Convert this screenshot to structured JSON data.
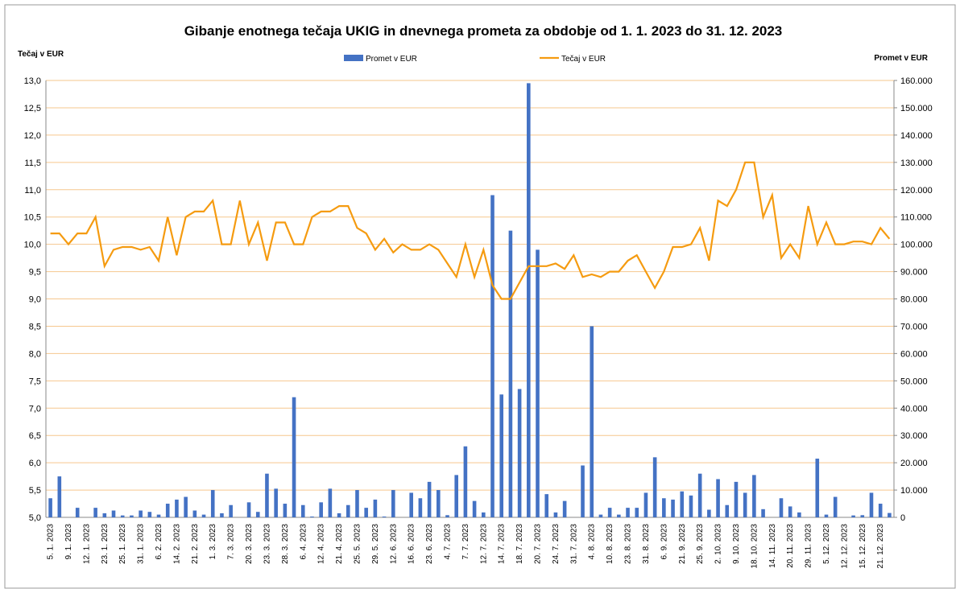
{
  "chart_data": {
    "type": "bar_line",
    "title": "Gibanje enotnega tečaja UKIG in dnevnega prometa za obdobje od 1. 1. 2023 do 31. 12. 2023",
    "y_label": "Tečaj v EUR",
    "y2_label": "Promet v EUR",
    "categories": [
      "5. 1. 2023",
      null,
      "9. 1. 2023",
      null,
      "12. 1. 2023",
      null,
      "23. 1. 2023",
      null,
      "25. 1. 2023",
      null,
      "31. 1. 2023",
      null,
      "6. 2. 2023",
      null,
      "14. 2. 2023",
      null,
      "21. 2. 2023",
      null,
      "1. 3. 2023",
      null,
      "7. 3. 2023",
      null,
      "20. 3. 2023",
      null,
      "23. 3. 2023",
      null,
      "28. 3. 2023",
      null,
      "6. 4. 2023",
      null,
      "12. 4. 2023",
      null,
      "21. 4. 2023",
      null,
      "25. 5. 2023",
      null,
      "29. 5. 2023",
      null,
      "12. 6. 2023",
      null,
      "16. 6. 2023",
      null,
      "23. 6. 2023",
      null,
      "4. 7. 2023",
      null,
      "7. 7. 2023",
      null,
      "12. 7. 2023",
      null,
      "14. 7. 2023",
      null,
      "18. 7. 2023",
      null,
      "20. 7. 2023",
      null,
      "24. 7. 2023",
      null,
      "31. 7. 2023",
      null,
      "4. 8. 2023",
      null,
      "10. 8. 2023",
      null,
      "23. 8. 2023",
      null,
      "31. 8. 2023",
      null,
      "6. 9. 2023",
      null,
      "21. 9. 2023",
      null,
      "25. 9. 2023",
      null,
      "2. 10. 2023",
      null,
      "9. 10. 2023",
      null,
      "18. 10. 2023",
      null,
      "14. 11. 2023",
      null,
      "20. 11. 2023",
      null,
      "29. 11. 2023",
      null,
      "5. 12. 2023",
      null,
      "12. 12. 2023",
      null,
      "15. 12. 2023",
      null,
      "21. 12. 2023",
      null
    ],
    "series": [
      {
        "name": "Promet v EUR",
        "type": "bar",
        "axis": "y2",
        "color": "#4472c4",
        "values": [
          7000,
          15000,
          0,
          3500,
          0,
          3500,
          1500,
          2500,
          700,
          700,
          2500,
          2000,
          1000,
          5000,
          6500,
          7500,
          2500,
          1000,
          10000,
          1500,
          4500,
          0,
          5500,
          2000,
          16000,
          10500,
          5000,
          44000,
          4500,
          300,
          5500,
          10500,
          1500,
          4500,
          10000,
          3500,
          6500,
          300,
          10000,
          0,
          9000,
          7000,
          13000,
          10000,
          800,
          15500,
          26000,
          6000,
          1800,
          118000,
          45000,
          105000,
          47000,
          159000,
          98000,
          8500,
          1800,
          6000,
          0,
          19000,
          70000,
          1000,
          3500,
          1000,
          3500,
          3500,
          9000,
          22000,
          7000,
          6500,
          9500,
          8000,
          16000,
          2800,
          14000,
          4500,
          13000,
          9000,
          15500,
          3000,
          0,
          7000,
          4000,
          1800,
          0,
          21500,
          1000,
          7500,
          0,
          700,
          800,
          9000,
          5000,
          1600
        ]
      },
      {
        "name": "Tečaj v EUR",
        "type": "line",
        "axis": "y",
        "color": "#f59b10",
        "values": [
          10.2,
          10.2,
          10.0,
          10.2,
          10.2,
          10.5,
          9.6,
          9.9,
          9.95,
          9.95,
          9.9,
          9.95,
          9.7,
          10.5,
          9.8,
          10.5,
          10.6,
          10.6,
          10.8,
          10.0,
          10.0,
          10.8,
          10.0,
          10.4,
          9.7,
          10.4,
          10.4,
          10.0,
          10.0,
          10.5,
          10.6,
          10.6,
          10.7,
          10.7,
          10.3,
          10.2,
          9.9,
          10.1,
          9.85,
          10.0,
          9.9,
          9.9,
          10.0,
          9.9,
          9.65,
          9.4,
          10.0,
          9.4,
          9.9,
          9.25,
          9.0,
          9.0,
          9.3,
          9.6,
          9.6,
          9.6,
          9.65,
          9.55,
          9.8,
          9.4,
          9.45,
          9.4,
          9.5,
          9.5,
          9.7,
          9.8,
          9.5,
          9.2,
          9.5,
          9.95,
          9.95,
          10.0,
          10.3,
          9.7,
          10.8,
          10.7,
          11.0,
          11.5,
          11.5,
          10.5,
          10.9,
          9.75,
          10.0,
          9.75,
          10.7,
          10.0,
          10.4,
          10.0,
          10.0,
          10.05,
          10.05,
          10.0,
          10.3,
          10.1
        ]
      }
    ],
    "ylim": [
      5,
      13
    ],
    "yticks": [
      {
        "value": 5,
        "label": "5,0"
      },
      {
        "value": 5.5,
        "label": "5,5"
      },
      {
        "value": 6,
        "label": "6,0"
      },
      {
        "value": 6.5,
        "label": "6,5"
      },
      {
        "value": 7,
        "label": "7,0"
      },
      {
        "value": 7.5,
        "label": "7,5"
      },
      {
        "value": 8,
        "label": "8,0"
      },
      {
        "value": 8.5,
        "label": "8,5"
      },
      {
        "value": 9,
        "label": "9,0"
      },
      {
        "value": 9.5,
        "label": "9,5"
      },
      {
        "value": 10,
        "label": "10,0"
      },
      {
        "value": 10.5,
        "label": "10,5"
      },
      {
        "value": 11,
        "label": "11,0"
      },
      {
        "value": 11.5,
        "label": "11,5"
      },
      {
        "value": 12,
        "label": "12,0"
      },
      {
        "value": 12.5,
        "label": "12,5"
      },
      {
        "value": 13,
        "label": "13,0"
      }
    ],
    "y2lim": [
      0,
      160000
    ],
    "y2ticks": [
      0,
      {
        "value": 10000,
        "label": "10.000"
      },
      {
        "value": 20000,
        "label": "20.000"
      },
      {
        "value": 30000,
        "label": "30.000"
      },
      {
        "value": 40000,
        "label": "40.000"
      },
      {
        "value": 50000,
        "label": "50.000"
      },
      {
        "value": 60000,
        "label": "60.000"
      },
      {
        "value": 70000,
        "label": "70.000"
      },
      {
        "value": 80000,
        "label": "80.000"
      },
      {
        "value": 90000,
        "label": "90.000"
      },
      {
        "value": 100000,
        "label": "100.000"
      },
      {
        "value": 110000,
        "label": "110.000"
      },
      {
        "value": 120000,
        "label": "120.000"
      },
      {
        "value": 130000,
        "label": "130.000"
      },
      {
        "value": 140000,
        "label": "140.000"
      },
      {
        "value": 150000,
        "label": "150.000"
      },
      {
        "value": 160000,
        "label": "160.000"
      }
    ],
    "grid": true,
    "legend": "top"
  }
}
